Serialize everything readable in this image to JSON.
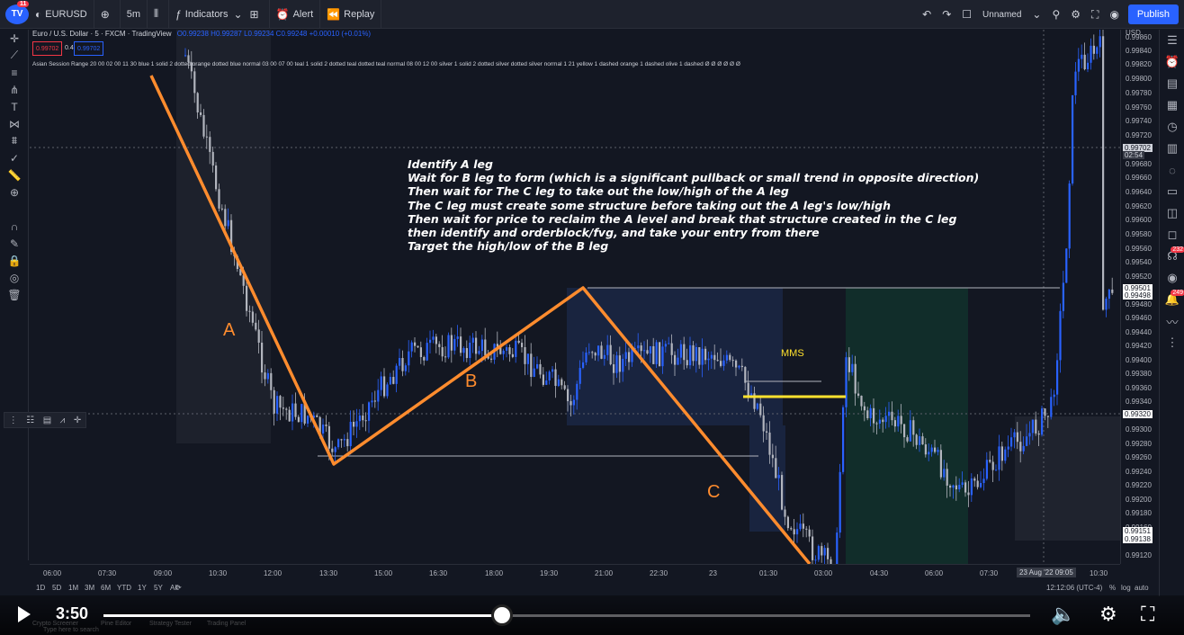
{
  "toolbar": {
    "badge": "11",
    "symbol": "EURUSD",
    "interval": "5m",
    "indicators": "Indicators",
    "alert": "Alert",
    "replay": "Replay",
    "layout": "Unnamed",
    "publish": "Publish"
  },
  "legend": {
    "title": "Euro / U.S. Dollar · 5 · FXCM · TradingView",
    "ohlc": "O0.99238 H0.99287 L0.99234 C0.99248 +0.00010 (+0.01%)",
    "sell": "0.99702",
    "spread": "0.4",
    "buy": "0.99702"
  },
  "indicator_text": "Asian Session Range 20 00 02 00 11 30 blue 1 solid 2 dotted orange dotted blue normal 03 00 07 00 teal 1 solid 2 dotted teal dotted teal normal 08 00 12 00 silver 1 solid 2 dotted silver dotted silver normal 1 21 yellow 1 dashed orange 1 dashed olive 1 dashed  Ø Ø Ø Ø Ø Ø",
  "notes": [
    "Identify A leg",
    "Wait for B leg to form (which is a significant pullback or small trend in opposite direction)",
    "Then wait for The C leg to take out the low/high of the A leg",
    "The C leg must create some structure before taking out the A leg's low/high",
    "Then wait for price to reclaim the A level and break that structure created in the C leg",
    "then identify and orderblock/fvg, and take your entry from there",
    "Target the high/low of the B leg"
  ],
  "legs": {
    "a": "A",
    "b": "B",
    "c": "C",
    "mms": "MMS"
  },
  "price_axis": {
    "currency": "USD",
    "labels": [
      "0.99860",
      "0.99840",
      "0.99820",
      "0.99800",
      "0.99780",
      "0.99760",
      "0.99740",
      "0.99720",
      "0.99680",
      "0.99660",
      "0.99640",
      "0.99620",
      "0.99600",
      "0.99580",
      "0.99560",
      "0.99540",
      "0.99520",
      "0.99480",
      "0.99460",
      "0.99440",
      "0.99420",
      "0.99400",
      "0.99380",
      "0.99360",
      "0.99340",
      "0.99300",
      "0.99280",
      "0.99260",
      "0.99240",
      "0.99220",
      "0.99200",
      "0.99180",
      "0.99160",
      "0.99120"
    ],
    "tags": [
      "0.99702",
      "02:54",
      "0.99501",
      "0.99498",
      "0.99320",
      "0.99151",
      "0.99138"
    ]
  },
  "time_axis": {
    "labels": [
      "06:00",
      "07:30",
      "09:00",
      "10:30",
      "12:00",
      "13:30",
      "15:00",
      "16:30",
      "18:00",
      "19:30",
      "21:00",
      "22:30",
      "23",
      "01:30",
      "03:00",
      "04:30",
      "06:00",
      "07:30",
      "10:30"
    ],
    "current": "23 Aug '22  09:05"
  },
  "bottom": {
    "ranges": [
      "1D",
      "5D",
      "1M",
      "3M",
      "6M",
      "YTD",
      "1Y",
      "5Y",
      "All"
    ],
    "clock": "12:12:06 (UTC-4)",
    "percent": "%",
    "log": "log",
    "auto": "auto"
  },
  "right_badges": [
    "232",
    "249"
  ],
  "video": {
    "time": "3:50",
    "progress": 0.43
  },
  "taskbar": [
    "Crypto Screener",
    "Pine Editor",
    "Strategy Tester",
    "Trading Panel"
  ],
  "taskbar_search": "Type here to search",
  "colors": {
    "bg": "#131722",
    "leg": "#ff8c2e",
    "up": "#2962ff",
    "down": "#b2b5be",
    "mms": "#ffe22e"
  }
}
